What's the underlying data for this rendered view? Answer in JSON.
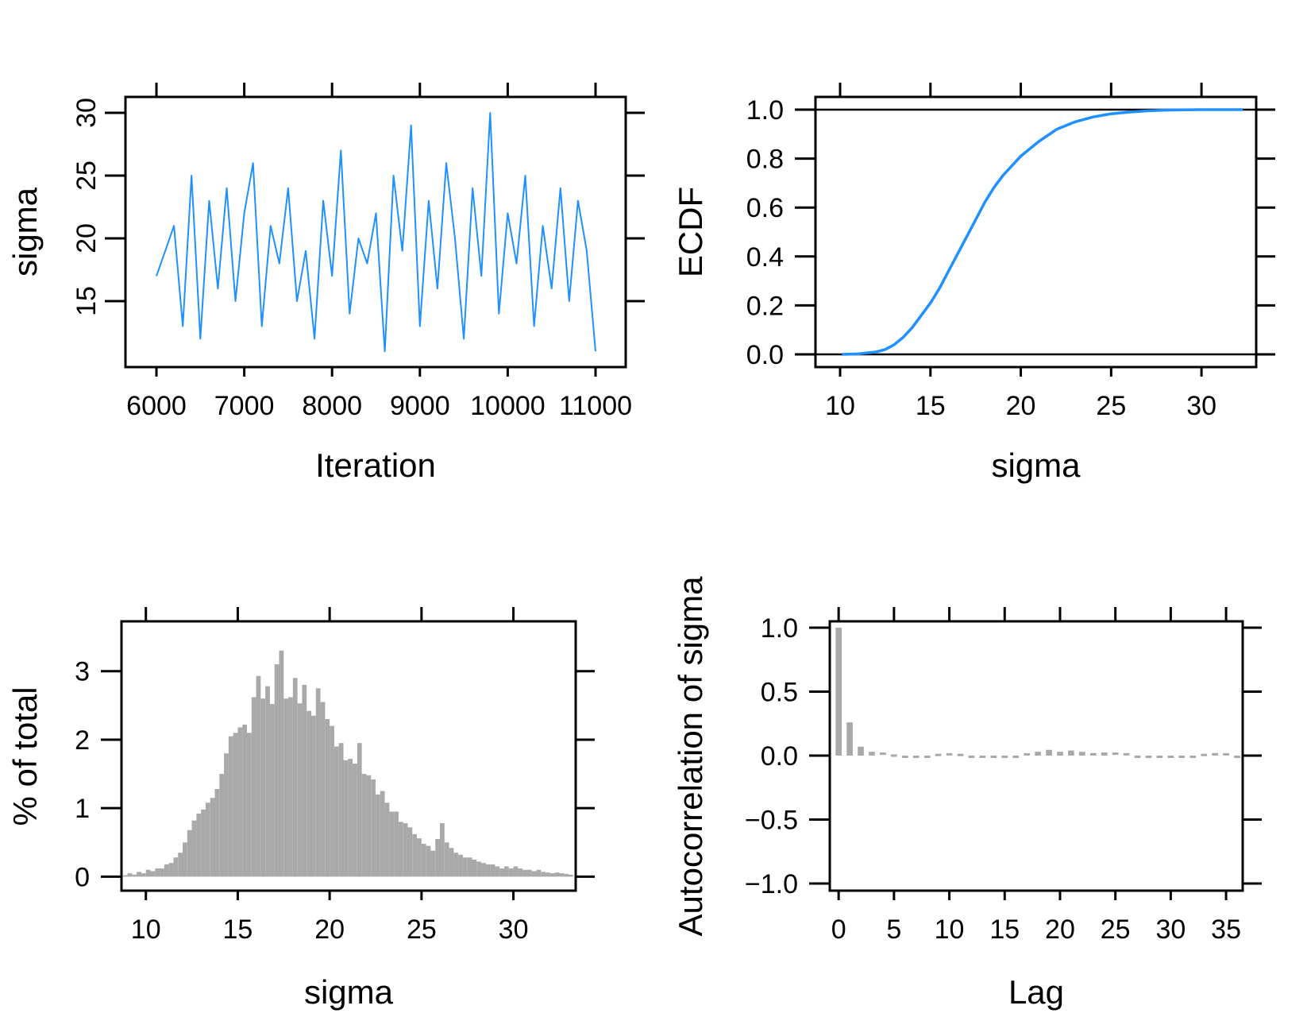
{
  "chart_data": [
    {
      "id": "trace",
      "type": "line",
      "xlabel": "Iteration",
      "ylabel": "sigma",
      "xlim": [
        6000,
        11000
      ],
      "ylim": [
        10,
        30
      ],
      "xticks": [
        6000,
        7000,
        8000,
        9000,
        10000,
        11000
      ],
      "yticks": [
        15,
        20,
        25,
        30
      ],
      "color": "#1E90FF",
      "series": [
        {
          "x": [
            6000,
            6100,
            6200,
            6300,
            6400,
            6500,
            6600,
            6700,
            6800,
            6900,
            7000,
            7100,
            7200,
            7300,
            7400,
            7500,
            7600,
            7700,
            7800,
            7900,
            8000,
            8100,
            8200,
            8300,
            8400,
            8500,
            8600,
            8700,
            8800,
            8900,
            9000,
            9100,
            9200,
            9300,
            9400,
            9500,
            9600,
            9700,
            9800,
            9900,
            10000,
            10100,
            10200,
            10300,
            10400,
            10500,
            10600,
            10700,
            10800,
            10900,
            11000
          ],
          "y": [
            17,
            19,
            21,
            13,
            25,
            12,
            23,
            16,
            24,
            15,
            22,
            26,
            13,
            21,
            18,
            24,
            15,
            19,
            12,
            23,
            17,
            27,
            14,
            20,
            18,
            22,
            11,
            25,
            19,
            29,
            13,
            23,
            16,
            26,
            20,
            12,
            24,
            17,
            30,
            14,
            22,
            18,
            25,
            13,
            21,
            16,
            24,
            15,
            23,
            19,
            11
          ]
        }
      ]
    },
    {
      "id": "ecdf",
      "type": "line",
      "xlabel": "sigma",
      "ylabel": "ECDF",
      "xlim": [
        10,
        32.5
      ],
      "ylim": [
        0,
        1
      ],
      "xticks": [
        10,
        15,
        20,
        25,
        30
      ],
      "yticks": [
        0.0,
        0.2,
        0.4,
        0.6,
        0.8,
        1.0
      ],
      "hlines": [
        0,
        1
      ],
      "color": "#1E90FF",
      "series": [
        {
          "x": [
            10.1,
            11,
            12,
            12.5,
            13,
            13.5,
            14,
            14.5,
            15,
            15.5,
            16,
            16.5,
            17,
            17.5,
            18,
            18.5,
            19,
            19.5,
            20,
            21,
            22,
            23,
            24,
            25,
            26,
            27,
            28,
            29,
            30,
            31,
            32.3
          ],
          "y": [
            0.0,
            0.002,
            0.01,
            0.02,
            0.04,
            0.07,
            0.11,
            0.16,
            0.21,
            0.27,
            0.34,
            0.41,
            0.48,
            0.55,
            0.62,
            0.68,
            0.73,
            0.77,
            0.81,
            0.87,
            0.92,
            0.95,
            0.97,
            0.983,
            0.99,
            0.995,
            0.998,
            0.999,
            1.0,
            1.0,
            1.0
          ]
        }
      ]
    },
    {
      "id": "hist",
      "type": "bar",
      "xlabel": "sigma",
      "ylabel": "% of total",
      "xlim": [
        8.5,
        33
      ],
      "ylim": [
        -0.1,
        3.6
      ],
      "xticks": [
        10,
        15,
        20,
        25,
        30
      ],
      "yticks": [
        0,
        1,
        2,
        3
      ],
      "color": "#A9A9A9",
      "binwidth": 0.25,
      "start": 8.75,
      "values": [
        0.02,
        0.05,
        0.03,
        0.07,
        0.05,
        0.1,
        0.08,
        0.12,
        0.12,
        0.18,
        0.2,
        0.28,
        0.35,
        0.5,
        0.68,
        0.82,
        0.92,
        0.98,
        1.08,
        1.15,
        1.28,
        1.5,
        1.8,
        2.05,
        2.1,
        2.18,
        2.22,
        2.1,
        2.62,
        2.93,
        2.6,
        2.78,
        2.52,
        3.1,
        3.3,
        2.6,
        2.62,
        2.9,
        2.53,
        2.8,
        2.42,
        2.35,
        2.75,
        2.55,
        2.3,
        2.2,
        1.9,
        1.95,
        1.7,
        1.72,
        1.65,
        1.95,
        1.5,
        1.48,
        1.42,
        1.2,
        1.25,
        1.08,
        0.95,
        0.95,
        0.8,
        0.78,
        0.72,
        0.62,
        0.56,
        0.48,
        0.45,
        0.38,
        0.55,
        0.78,
        0.5,
        0.42,
        0.35,
        0.32,
        0.28,
        0.28,
        0.25,
        0.22,
        0.2,
        0.18,
        0.18,
        0.15,
        0.12,
        0.15,
        0.12,
        0.15,
        0.12,
        0.1,
        0.1,
        0.08,
        0.1,
        0.07,
        0.06,
        0.05,
        0.06,
        0.05,
        0.04,
        0.03
      ]
    },
    {
      "id": "acf",
      "type": "bar",
      "xlabel": "Lag",
      "ylabel": "Autocorrelation of sigma",
      "xlim": [
        -0.8,
        36.5
      ],
      "ylim": [
        -1.05,
        1.05
      ],
      "xticks": [
        0,
        5,
        10,
        15,
        20,
        25,
        30,
        35
      ],
      "yticks": [
        -1.0,
        -0.5,
        0.0,
        0.5,
        1.0
      ],
      "color": "#A9A9A9",
      "lags": [
        0,
        1,
        2,
        3,
        4,
        5,
        6,
        7,
        8,
        9,
        10,
        11,
        12,
        13,
        14,
        15,
        16,
        17,
        18,
        19,
        20,
        21,
        22,
        23,
        24,
        25,
        26,
        27,
        28,
        29,
        30,
        31,
        32,
        33,
        34,
        35,
        36
      ],
      "values": [
        1.0,
        0.26,
        0.07,
        0.03,
        0.015,
        0.0,
        -0.01,
        -0.008,
        -0.005,
        0.005,
        0.01,
        0.005,
        -0.005,
        -0.01,
        -0.012,
        -0.015,
        -0.01,
        0.01,
        0.03,
        0.045,
        0.03,
        0.04,
        0.03,
        0.02,
        0.025,
        0.015,
        0.01,
        -0.005,
        -0.01,
        -0.015,
        -0.01,
        -0.015,
        -0.01,
        0.005,
        0.02,
        0.01,
        -0.005
      ]
    }
  ]
}
